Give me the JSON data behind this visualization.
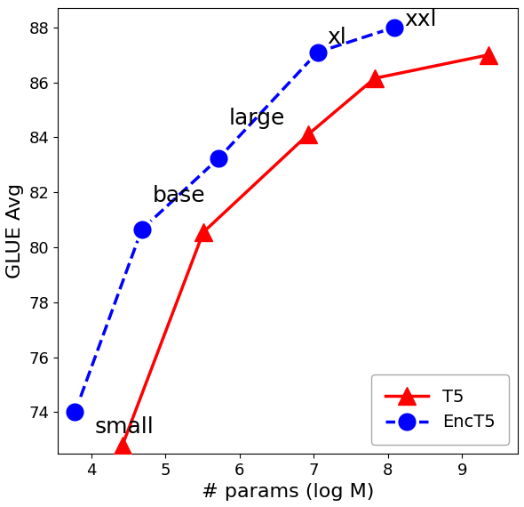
{
  "t5_x": [
    4.42,
    5.51,
    6.92,
    7.82,
    9.35
  ],
  "t5_y": [
    72.8,
    80.55,
    84.1,
    86.15,
    87.0
  ],
  "enct5_x": [
    3.78,
    4.68,
    5.72,
    7.05,
    8.08
  ],
  "enct5_y": [
    74.0,
    80.65,
    83.25,
    87.1,
    88.0
  ],
  "labels": [
    "small",
    "base",
    "large",
    "xl",
    "xxl"
  ],
  "t5_color": "#ff0000",
  "enct5_color": "#0000ff",
  "xlabel": "# params (log M)",
  "ylabel": "GLUE Avg",
  "xlim": [
    3.55,
    9.75
  ],
  "ylim": [
    72.5,
    88.7
  ],
  "yticks": [
    74,
    76,
    78,
    80,
    82,
    84,
    86,
    88
  ],
  "legend_labels": [
    "T5",
    "EncT5"
  ],
  "annotation_fontsize": 18,
  "axis_label_fontsize": 16,
  "tick_fontsize": 13
}
